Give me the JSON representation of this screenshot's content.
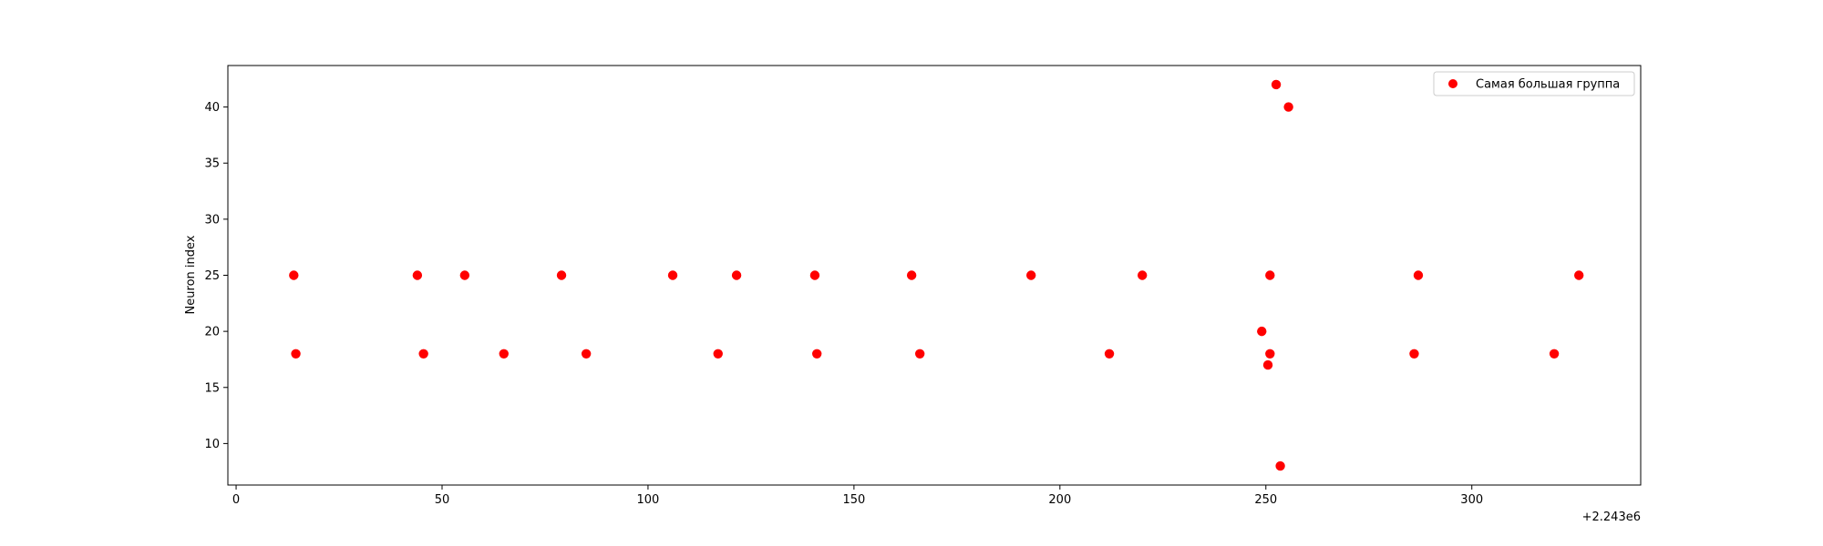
{
  "chart_data": {
    "type": "scatter",
    "title": "",
    "xlabel": "",
    "ylabel": "Neuron index",
    "x_offset_label": "+2.243e6",
    "xlim": [
      -2,
      341
    ],
    "ylim": [
      6.3,
      43.7
    ],
    "xticks": [
      0,
      50,
      100,
      150,
      200,
      250,
      300
    ],
    "yticks": [
      10,
      15,
      20,
      25,
      30,
      35,
      40
    ],
    "grid": false,
    "legend_position": "top-right",
    "series": [
      {
        "name": "Самая большая группа",
        "color": "#ff0000",
        "points": [
          {
            "x": 14,
            "y": 25
          },
          {
            "x": 14.5,
            "y": 18
          },
          {
            "x": 44,
            "y": 25
          },
          {
            "x": 45.5,
            "y": 18
          },
          {
            "x": 55.5,
            "y": 25
          },
          {
            "x": 65,
            "y": 18
          },
          {
            "x": 79,
            "y": 25
          },
          {
            "x": 85,
            "y": 18
          },
          {
            "x": 106,
            "y": 25
          },
          {
            "x": 117,
            "y": 18
          },
          {
            "x": 121.5,
            "y": 25
          },
          {
            "x": 140.5,
            "y": 25
          },
          {
            "x": 141,
            "y": 18
          },
          {
            "x": 164,
            "y": 25
          },
          {
            "x": 166,
            "y": 18
          },
          {
            "x": 193,
            "y": 25
          },
          {
            "x": 212,
            "y": 18
          },
          {
            "x": 220,
            "y": 25
          },
          {
            "x": 249,
            "y": 20
          },
          {
            "x": 250.5,
            "y": 17
          },
          {
            "x": 251,
            "y": 25
          },
          {
            "x": 251,
            "y": 18
          },
          {
            "x": 252.5,
            "y": 42
          },
          {
            "x": 253.5,
            "y": 8
          },
          {
            "x": 255.5,
            "y": 40
          },
          {
            "x": 286,
            "y": 18
          },
          {
            "x": 287,
            "y": 25
          },
          {
            "x": 320,
            "y": 18
          },
          {
            "x": 326,
            "y": 25
          }
        ]
      }
    ]
  }
}
